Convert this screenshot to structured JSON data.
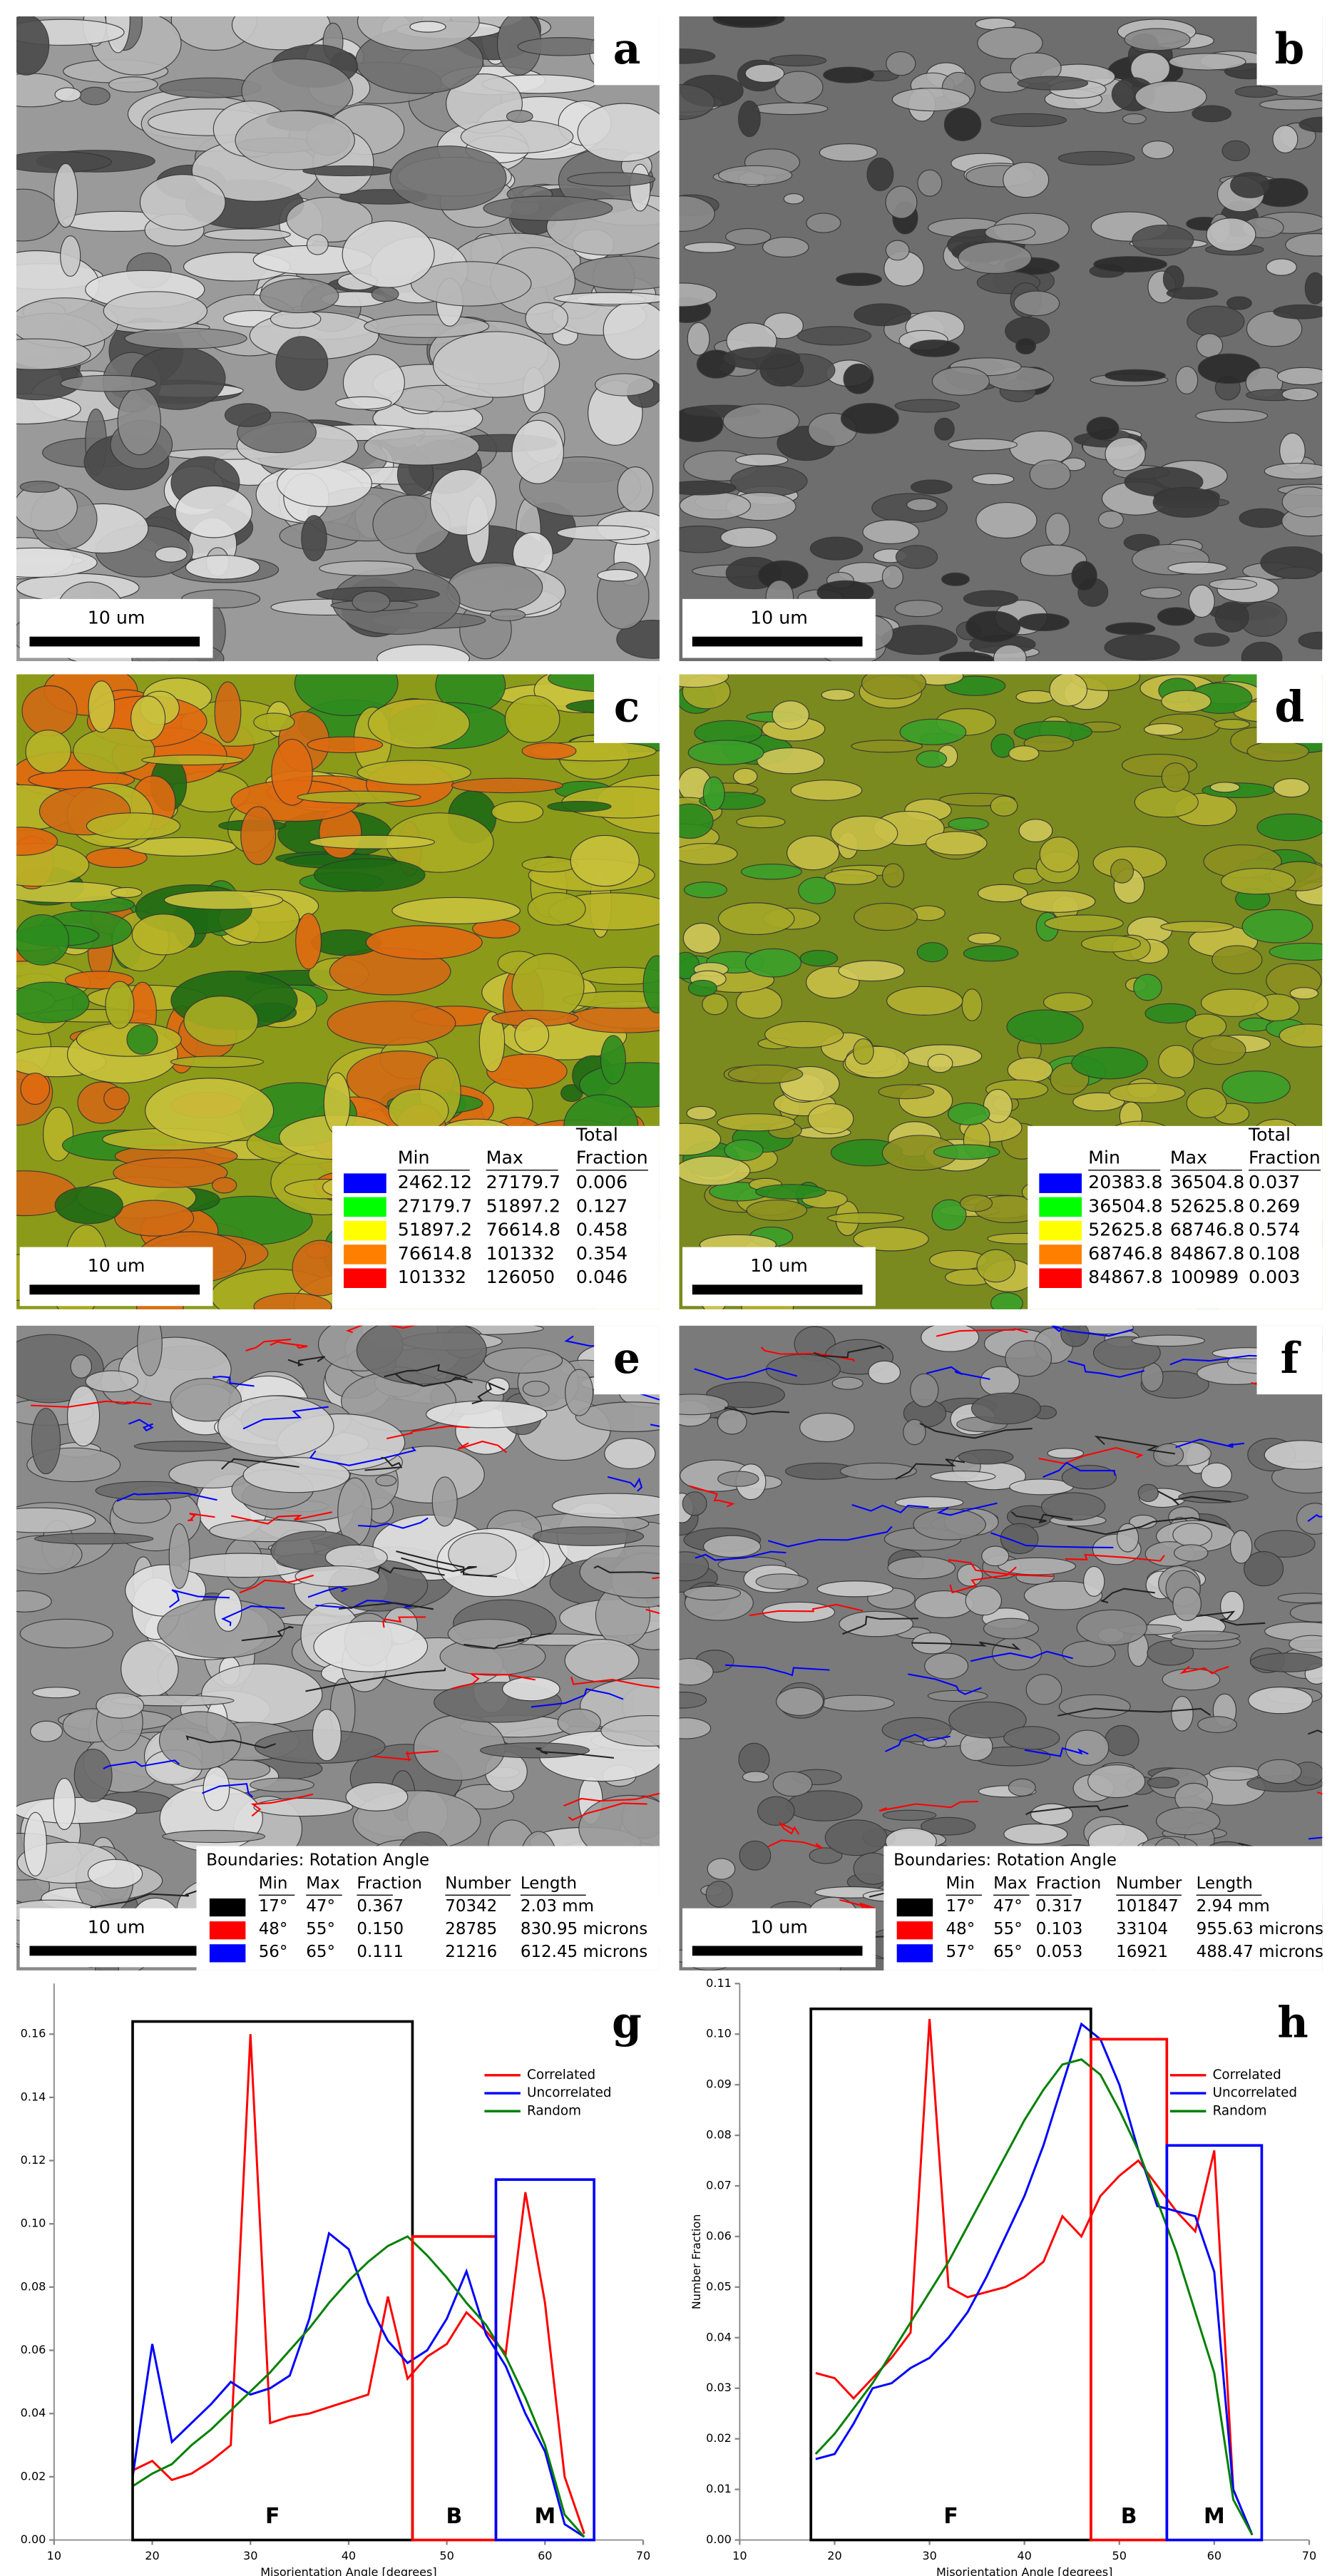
{
  "panels": [
    {
      "letter": "a",
      "scale_bar": "10 um"
    },
    {
      "letter": "b",
      "scale_bar": "10 um"
    },
    {
      "letter": "c",
      "scale_bar": "10 um",
      "legend": {
        "header_top": "Total",
        "headers": [
          "Min",
          "Max",
          "Fraction"
        ],
        "rows": [
          {
            "color": "#0000ff",
            "cells": [
              "2462.12",
              "27179.7",
              "0.006"
            ]
          },
          {
            "color": "#00ff00",
            "cells": [
              "27179.7",
              "51897.2",
              "0.127"
            ]
          },
          {
            "color": "#ffff00",
            "cells": [
              "51897.2",
              "76614.8",
              "0.458"
            ]
          },
          {
            "color": "#ff8000",
            "cells": [
              "76614.8",
              "101332",
              "0.354"
            ]
          },
          {
            "color": "#ff0000",
            "cells": [
              "101332",
              "126050",
              "0.046"
            ]
          }
        ]
      }
    },
    {
      "letter": "d",
      "scale_bar": "10 um",
      "legend": {
        "header_top": "Total",
        "headers": [
          "Min",
          "Max",
          "Fraction"
        ],
        "rows": [
          {
            "color": "#0000ff",
            "cells": [
              "20383.8",
              "36504.8",
              "0.037"
            ]
          },
          {
            "color": "#00ff00",
            "cells": [
              "36504.8",
              "52625.8",
              "0.269"
            ]
          },
          {
            "color": "#ffff00",
            "cells": [
              "52625.8",
              "68746.8",
              "0.574"
            ]
          },
          {
            "color": "#ff8000",
            "cells": [
              "68746.8",
              "84867.8",
              "0.108"
            ]
          },
          {
            "color": "#ff0000",
            "cells": [
              "84867.8",
              "100989",
              "0.003"
            ]
          }
        ]
      }
    },
    {
      "letter": "e",
      "scale_bar": "10 um",
      "legend": {
        "title": "Boundaries: Rotation Angle",
        "headers": [
          "Min",
          "Max",
          "Fraction",
          "Number",
          "Length"
        ],
        "rows": [
          {
            "color": "#000000",
            "cells": [
              "17°",
              "47°",
              "0.367",
              "70342",
              "2.03 mm"
            ]
          },
          {
            "color": "#ff0000",
            "cells": [
              "48°",
              "55°",
              "0.150",
              "28785",
              "830.95 microns"
            ]
          },
          {
            "color": "#0000ff",
            "cells": [
              "56°",
              "65°",
              "0.111",
              "21216",
              "612.45 microns"
            ]
          }
        ]
      }
    },
    {
      "letter": "f",
      "scale_bar": "10 um",
      "legend": {
        "title": "Boundaries: Rotation Angle",
        "headers": [
          "Min",
          "Max",
          "Fraction",
          "Number",
          "Length"
        ],
        "rows": [
          {
            "color": "#000000",
            "cells": [
              "17°",
              "47°",
              "0.317",
              "101847",
              "2.94 mm"
            ]
          },
          {
            "color": "#ff0000",
            "cells": [
              "48°",
              "55°",
              "0.103",
              "33104",
              "955.63 microns"
            ]
          },
          {
            "color": "#0000ff",
            "cells": [
              "57°",
              "65°",
              "0.053",
              "16921",
              "488.47 microns"
            ]
          }
        ]
      }
    }
  ],
  "chart_data": [
    {
      "type": "line",
      "panel_label": "g",
      "x_label": "Misorientation Angle [degrees]",
      "x": [
        18,
        20,
        22,
        24,
        26,
        28,
        30,
        32,
        34,
        36,
        38,
        40,
        42,
        44,
        46,
        48,
        50,
        52,
        54,
        56,
        58,
        60,
        62,
        64
      ],
      "series": [
        {
          "name": "Correlated",
          "color": "#ff0000",
          "values": [
            0.022,
            0.025,
            0.019,
            0.021,
            0.025,
            0.03,
            0.16,
            0.037,
            0.039,
            0.04,
            0.042,
            0.044,
            0.046,
            0.077,
            0.051,
            0.058,
            0.062,
            0.072,
            0.066,
            0.059,
            0.11,
            0.075,
            0.02,
            0.002
          ]
        },
        {
          "name": "Uncorrelated",
          "color": "#0000ff",
          "values": [
            0.02,
            0.062,
            0.031,
            0.037,
            0.043,
            0.05,
            0.046,
            0.048,
            0.052,
            0.07,
            0.097,
            0.092,
            0.075,
            0.063,
            0.056,
            0.06,
            0.07,
            0.085,
            0.065,
            0.055,
            0.04,
            0.028,
            0.005,
            0.001
          ]
        },
        {
          "name": "Random",
          "color": "#008000",
          "values": [
            0.017,
            0.021,
            0.024,
            0.03,
            0.035,
            0.041,
            0.047,
            0.053,
            0.06,
            0.067,
            0.075,
            0.082,
            0.088,
            0.093,
            0.096,
            0.09,
            0.083,
            0.075,
            0.068,
            0.058,
            0.045,
            0.03,
            0.008,
            0.001
          ]
        }
      ],
      "xlim": [
        10,
        70
      ],
      "ylim": [
        0,
        0.176
      ],
      "xticks": [
        10,
        20,
        30,
        40,
        50,
        60,
        70
      ],
      "yticks": [
        {
          "value": 0,
          "label": "0.00"
        },
        {
          "value": 0.02,
          "label": "0.02"
        },
        {
          "value": 0.04,
          "label": "0.04"
        },
        {
          "value": 0.06,
          "label": "0.06"
        },
        {
          "value": 0.08,
          "label": "0.08"
        },
        {
          "value": 0.1,
          "label": "0.10"
        },
        {
          "value": 0.12,
          "label": "0.12"
        },
        {
          "value": 0.14,
          "label": "0.14"
        },
        {
          "value": 0.16,
          "label": "0.16"
        }
      ],
      "regions": [
        {
          "label": "F",
          "color": "#000000",
          "x0": 18,
          "x1": 46.5,
          "top": 0.164
        },
        {
          "label": "B",
          "color": "#ff0000",
          "x0": 46.5,
          "x1": 55,
          "top": 0.096
        },
        {
          "label": "M",
          "color": "#0000ff",
          "x0": 55,
          "x1": 65,
          "top": 0.114
        }
      ]
    },
    {
      "type": "line",
      "panel_label": "h",
      "x_label": "Misorientation Angle [degrees]",
      "y_label": "Number Fraction",
      "x": [
        18,
        20,
        22,
        24,
        26,
        28,
        30,
        32,
        34,
        36,
        38,
        40,
        42,
        44,
        46,
        48,
        50,
        52,
        54,
        56,
        58,
        60,
        62,
        64
      ],
      "series": [
        {
          "name": "Correlated",
          "color": "#ff0000",
          "values": [
            0.033,
            0.032,
            0.028,
            0.032,
            0.036,
            0.041,
            0.103,
            0.05,
            0.048,
            0.049,
            0.05,
            0.052,
            0.055,
            0.064,
            0.06,
            0.068,
            0.072,
            0.075,
            0.07,
            0.065,
            0.061,
            0.077,
            0.01,
            0.001
          ]
        },
        {
          "name": "Uncorrelated",
          "color": "#0000ff",
          "values": [
            0.016,
            0.017,
            0.023,
            0.03,
            0.031,
            0.034,
            0.036,
            0.04,
            0.045,
            0.052,
            0.06,
            0.068,
            0.078,
            0.09,
            0.102,
            0.099,
            0.09,
            0.077,
            0.066,
            0.065,
            0.064,
            0.053,
            0.01,
            0.001
          ]
        },
        {
          "name": "Random",
          "color": "#008000",
          "values": [
            0.017,
            0.021,
            0.026,
            0.031,
            0.037,
            0.043,
            0.049,
            0.055,
            0.062,
            0.069,
            0.076,
            0.083,
            0.089,
            0.094,
            0.095,
            0.092,
            0.085,
            0.077,
            0.067,
            0.057,
            0.045,
            0.033,
            0.008,
            0.001
          ]
        }
      ],
      "xlim": [
        10,
        70
      ],
      "ylim": [
        0,
        0.11
      ],
      "xticks": [
        10,
        20,
        30,
        40,
        50,
        60,
        70
      ],
      "yticks": [
        {
          "value": 0,
          "label": "0.00"
        },
        {
          "value": 0.01,
          "label": "0.01"
        },
        {
          "value": 0.02,
          "label": "0.02"
        },
        {
          "value": 0.03,
          "label": "0.03"
        },
        {
          "value": 0.04,
          "label": "0.04"
        },
        {
          "value": 0.05,
          "label": "0.05"
        },
        {
          "value": 0.06,
          "label": "0.06"
        },
        {
          "value": 0.07,
          "label": "0.07"
        },
        {
          "value": 0.08,
          "label": "0.08"
        },
        {
          "value": 0.09,
          "label": "0.09"
        },
        {
          "value": 0.1,
          "label": "0.10"
        },
        {
          "value": 0.11,
          "label": "0.11"
        }
      ],
      "regions": [
        {
          "label": "F",
          "color": "#000000",
          "x0": 17.5,
          "x1": 47,
          "top": 0.105
        },
        {
          "label": "B",
          "color": "#ff0000",
          "x0": 47,
          "x1": 55,
          "top": 0.099
        },
        {
          "label": "M",
          "color": "#0000ff",
          "x0": 55,
          "x1": 65,
          "top": 0.078
        }
      ]
    }
  ]
}
